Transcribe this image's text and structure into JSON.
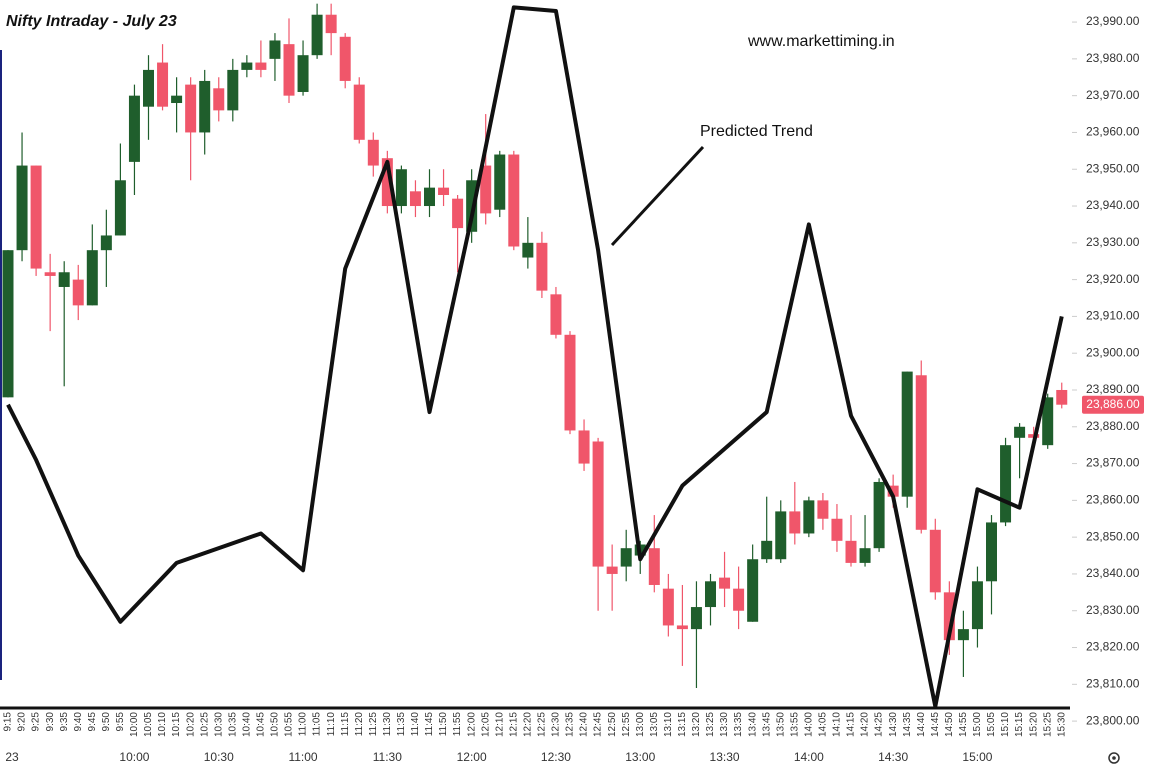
{
  "chart_data": {
    "type": "candlestick",
    "title": "Nifty Intraday - July 23",
    "subtitle": "www.markettiming.in",
    "categories": [
      "9:15",
      "9:20",
      "9:25",
      "9:30",
      "9:35",
      "9:40",
      "9:45",
      "9:50",
      "9:55",
      "10:00",
      "10:05",
      "10:10",
      "10:15",
      "10:20",
      "10:25",
      "10:30",
      "10:35",
      "10:40",
      "10:45",
      "10:50",
      "10:55",
      "11:00",
      "11:05",
      "11:10",
      "11:15",
      "11:20",
      "11:25",
      "11:30",
      "11:35",
      "11:40",
      "11:45",
      "11:50",
      "11:55",
      "12:00",
      "12:05",
      "12:10",
      "12:15",
      "12:20",
      "12:25",
      "12:30",
      "12:35",
      "12:40",
      "12:45",
      "12:50",
      "12:55",
      "13:00",
      "13:05",
      "13:10",
      "13:15",
      "13:20",
      "13:25",
      "13:30",
      "13:35",
      "13:40",
      "13:45",
      "13:50",
      "13:55",
      "14:00",
      "14:05",
      "14:10",
      "14:15",
      "14:20",
      "14:25",
      "14:30",
      "14:35",
      "14:40",
      "14:45",
      "14:50",
      "14:55",
      "15:00",
      "15:05",
      "15:10",
      "15:15",
      "15:20",
      "15:25",
      "15:30"
    ],
    "open": [
      23888,
      23928,
      23951,
      23922,
      23918,
      23920,
      23913,
      23928,
      23932,
      23952,
      23967,
      23979,
      23968,
      23973,
      23960,
      23972,
      23966,
      23977,
      23979,
      23980,
      23984,
      23971,
      23981,
      23992,
      23986,
      23973,
      23958,
      23953,
      23940,
      23944,
      23940,
      23945,
      23942,
      23933,
      23951,
      23939,
      23954,
      23926,
      23930,
      23916,
      23905,
      23879,
      23876,
      23842,
      23842,
      23845,
      23847,
      23836,
      23826,
      23825,
      23831,
      23839,
      23836,
      23827,
      23844,
      23844,
      23857,
      23851,
      23860,
      23855,
      23849,
      23843,
      23847,
      23864,
      23861,
      23894,
      23852,
      23835,
      23822,
      23825,
      23838,
      23854,
      23877,
      23878,
      23875,
      23890
    ],
    "high": [
      23928,
      23960,
      23951,
      23927,
      23925,
      23924,
      23935,
      23939,
      23957,
      23973,
      23981,
      23984,
      23975,
      23975,
      23977,
      23975,
      23980,
      23981,
      23985,
      23987,
      23991,
      23985,
      23995,
      23995,
      23987,
      23975,
      23960,
      23955,
      23951,
      23947,
      23950,
      23950,
      23943,
      23950,
      23965,
      23955,
      23955,
      23937,
      23933,
      23918,
      23906,
      23882,
      23877,
      23848,
      23852,
      23849,
      23856,
      23840,
      23837,
      23838,
      23840,
      23846,
      23842,
      23848,
      23861,
      23860,
      23865,
      23861,
      23862,
      23859,
      23856,
      23856,
      23866,
      23867,
      23895,
      23898,
      23855,
      23838,
      23830,
      23842,
      23856,
      23877,
      23881,
      23880,
      23889,
      23892
    ],
    "low": [
      23888,
      23925,
      23921,
      23906,
      23891,
      23909,
      23913,
      23918,
      23932,
      23943,
      23958,
      23966,
      23960,
      23947,
      23954,
      23963,
      23963,
      23975,
      23975,
      23974,
      23968,
      23970,
      23980,
      23981,
      23972,
      23957,
      23948,
      23938,
      23938,
      23937,
      23937,
      23940,
      23922,
      23930,
      23935,
      23937,
      23928,
      23923,
      23915,
      23904,
      23878,
      23868,
      23830,
      23830,
      23838,
      23840,
      23835,
      23823,
      23815,
      23809,
      23826,
      23831,
      23825,
      23827,
      23843,
      23843,
      23848,
      23850,
      23852,
      23846,
      23842,
      23842,
      23846,
      23858,
      23858,
      23851,
      23833,
      23818,
      23812,
      23820,
      23829,
      23853,
      23866,
      23876,
      23874,
      23885
    ],
    "close": [
      23928,
      23951,
      23923,
      23921,
      23922,
      23913,
      23928,
      23932,
      23947,
      23970,
      23977,
      23967,
      23970,
      23960,
      23974,
      23966,
      23977,
      23979,
      23977,
      23985,
      23970,
      23981,
      23992,
      23987,
      23974,
      23958,
      23951,
      23940,
      23950,
      23940,
      23945,
      23943,
      23934,
      23947,
      23938,
      23954,
      23929,
      23930,
      23917,
      23905,
      23879,
      23870,
      23842,
      23840,
      23847,
      23848,
      23837,
      23826,
      23825,
      23831,
      23838,
      23836,
      23830,
      23844,
      23849,
      23857,
      23851,
      23860,
      23855,
      23849,
      23843,
      23847,
      23865,
      23861,
      23895,
      23852,
      23835,
      23822,
      23825,
      23838,
      23854,
      23875,
      23880,
      23877,
      23888,
      23886
    ],
    "up_color": "#1f5e2c",
    "down_color": "#f0566a",
    "ylim": [
      23795,
      23996
    ],
    "yticks": [
      {
        "value": 23800,
        "label": "23,800.00"
      },
      {
        "value": 23810,
        "label": "23,810.00"
      },
      {
        "value": 23820,
        "label": "23,820.00"
      },
      {
        "value": 23830,
        "label": "23,830.00"
      },
      {
        "value": 23840,
        "label": "23,840.00"
      },
      {
        "value": 23850,
        "label": "23,850.00"
      },
      {
        "value": 23860,
        "label": "23,860.00"
      },
      {
        "value": 23870,
        "label": "23,870.00"
      },
      {
        "value": 23880,
        "label": "23,880.00"
      },
      {
        "value": 23890,
        "label": "23,890.00"
      },
      {
        "value": 23900,
        "label": "23,900.00"
      },
      {
        "value": 23910,
        "label": "23,910.00"
      },
      {
        "value": 23920,
        "label": "23,920.00"
      },
      {
        "value": 23930,
        "label": "23,930.00"
      },
      {
        "value": 23940,
        "label": "23,940.00"
      },
      {
        "value": 23950,
        "label": "23,950.00"
      },
      {
        "value": 23960,
        "label": "23,960.00"
      },
      {
        "value": 23970,
        "label": "23,970.00"
      },
      {
        "value": 23980,
        "label": "23,980.00"
      },
      {
        "value": 23990,
        "label": "23,990.00"
      }
    ],
    "last_price": {
      "value": 23886,
      "label": "23,886.00"
    },
    "time_labels": [
      "23",
      "10:00",
      "10:30",
      "11:00",
      "11:30",
      "12:00",
      "12:30",
      "13:00",
      "13:30",
      "14:00",
      "14:30",
      "15:00"
    ],
    "trend": {
      "label": "Predicted Trend",
      "x": [
        "9:15",
        "9:25",
        "9:40",
        "9:55",
        "10:15",
        "10:45",
        "11:00",
        "11:15",
        "11:30",
        "11:45",
        "12:00",
        "12:15",
        "12:30",
        "12:45",
        "13:00",
        "13:15",
        "13:45",
        "14:00",
        "14:15",
        "14:30",
        "14:45",
        "15:00",
        "15:15",
        "15:30"
      ],
      "values": [
        23886,
        23871,
        23845,
        23827,
        23843,
        23851,
        23841,
        23923,
        23952,
        23884,
        23937,
        23994,
        23993,
        23928,
        23844,
        23864,
        23884,
        23935,
        23883,
        23861,
        23804,
        23863,
        23858,
        23910
      ]
    }
  }
}
